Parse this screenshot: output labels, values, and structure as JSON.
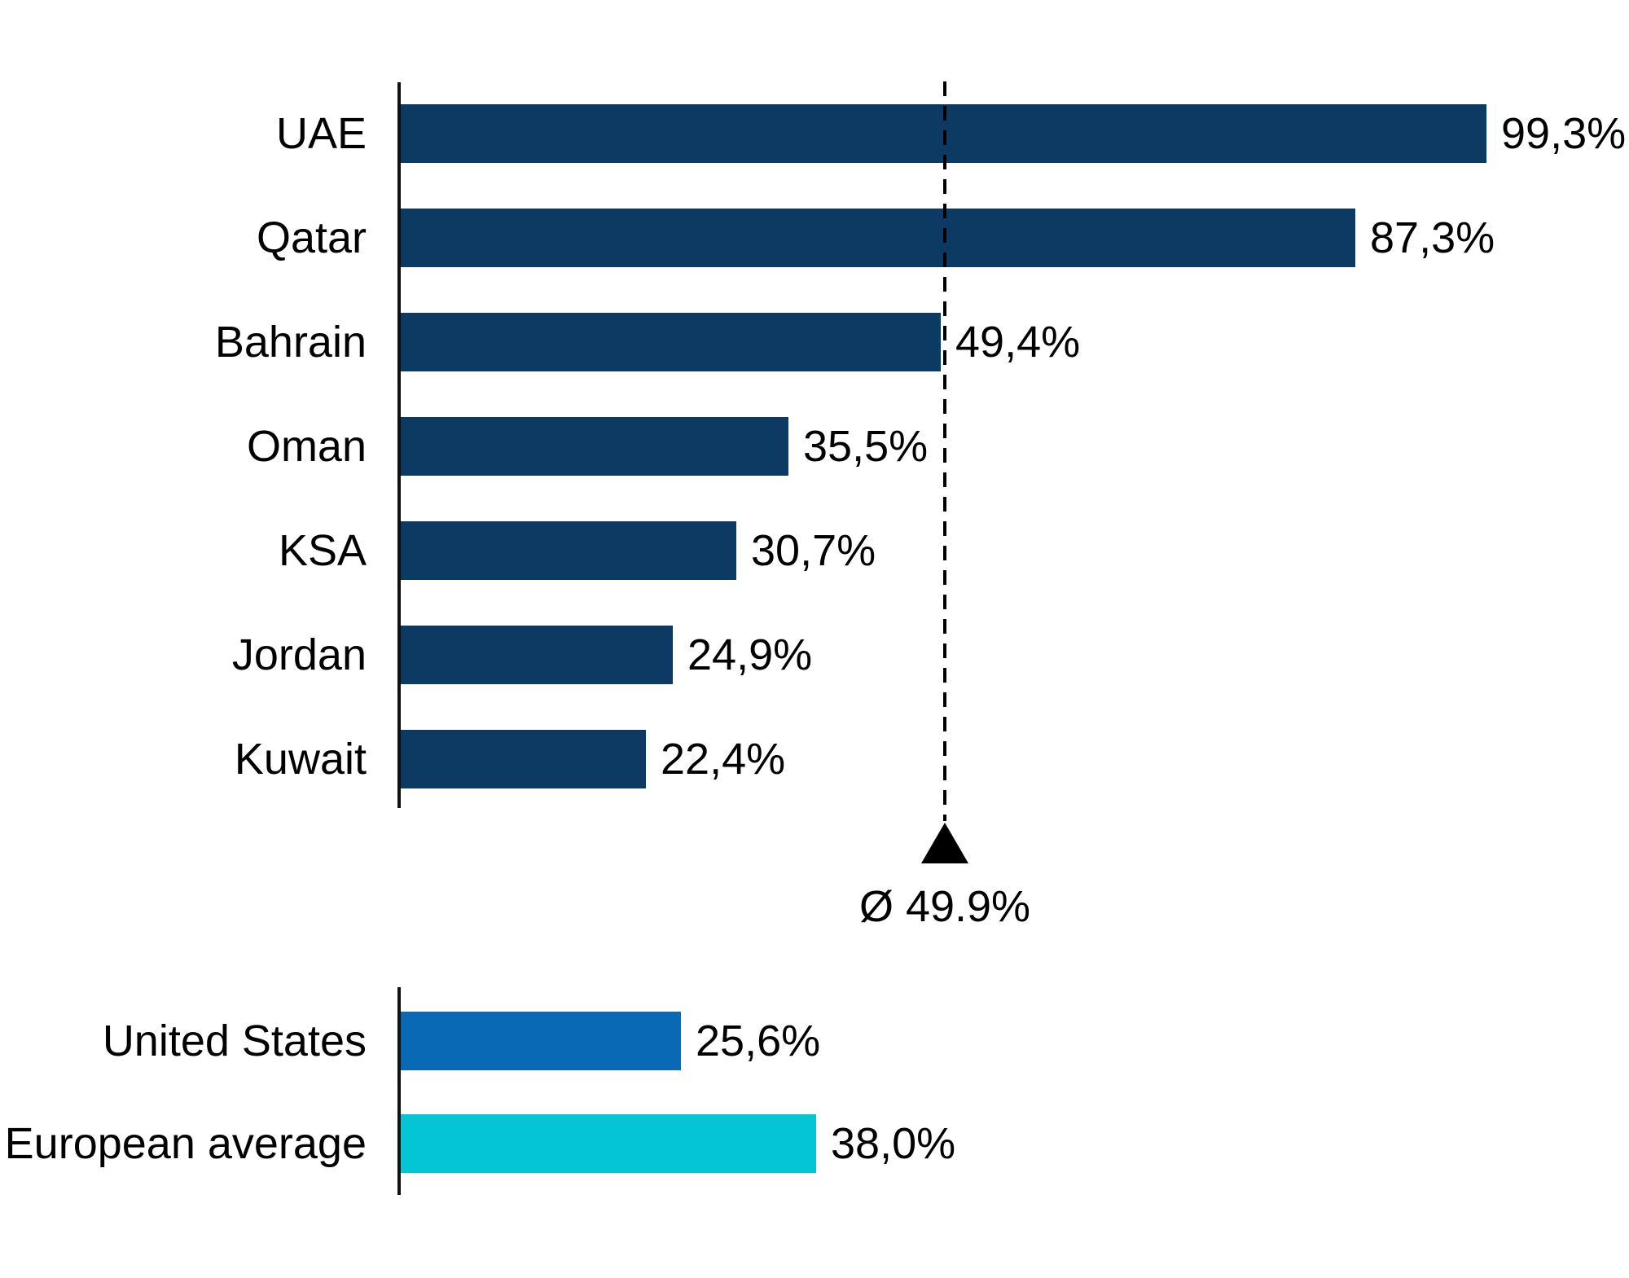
{
  "page": {
    "background": "#ffffff",
    "text_color": "#000000",
    "axis_color": "#111111"
  },
  "chart_data": [
    {
      "type": "bar",
      "orientation": "horizontal",
      "categories": [
        "UAE",
        "Qatar",
        "Bahrain",
        "Oman",
        "KSA",
        "Jordan",
        "Kuwait"
      ],
      "values": [
        99.3,
        87.3,
        49.4,
        35.5,
        30.7,
        24.9,
        22.4
      ],
      "value_labels": [
        "99,3%",
        "87,3%",
        "49,4%",
        "35,5%",
        "30,7%",
        "24,9%",
        "22,4%"
      ],
      "bar_color": "#0d3a62",
      "xlim": [
        0,
        105
      ],
      "grid": false,
      "legend": "none",
      "average_marker": {
        "value": 49.9,
        "label": "Ø 49.9%",
        "line_style": "dashed",
        "line_color": "#000000",
        "marker_shape": "triangle-up",
        "marker_color": "#000000"
      }
    },
    {
      "type": "bar",
      "orientation": "horizontal",
      "categories": [
        "United States",
        "European average"
      ],
      "values": [
        25.6,
        38.0
      ],
      "value_labels": [
        "25,6%",
        "38,0%"
      ],
      "bar_colors": [
        "#0a69b5",
        "#04c5d3"
      ],
      "xlim": [
        0,
        105
      ],
      "grid": false,
      "legend": "none"
    }
  ]
}
